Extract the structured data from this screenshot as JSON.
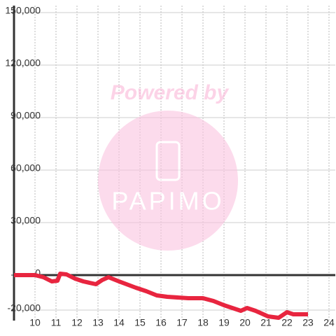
{
  "chart_data": {
    "type": "line",
    "watermark": {
      "line1": "Powered by",
      "line2": "PAPIMO"
    },
    "x": [
      9,
      10,
      10.4,
      10.8,
      11.07,
      11.2,
      11.5,
      11.9,
      12.3,
      12.9,
      13.2,
      13.5,
      14,
      14.8,
      15.3,
      15.8,
      16.3,
      17.3,
      18,
      18.5,
      19,
      19.8,
      20.1,
      20.5,
      21.1,
      21.6,
      22,
      22.3,
      23
    ],
    "series": [
      {
        "color": "#e8253f",
        "values": [
          0,
          0,
          -1200,
          -3600,
          -3200,
          800,
          400,
          -2000,
          -3600,
          -5200,
          -2800,
          -1200,
          -3600,
          -7200,
          -9200,
          -11600,
          -12400,
          -13200,
          -13200,
          -14800,
          -17200,
          -20400,
          -18800,
          -20400,
          -23600,
          -24400,
          -21200,
          -22400,
          -22400
        ]
      }
    ],
    "xlim": [
      9,
      24.3
    ],
    "xticks": [
      10,
      11,
      12,
      13,
      14,
      15,
      16,
      17,
      18,
      19,
      20,
      21,
      22,
      23,
      24
    ],
    "ylim": [
      -26000,
      154000
    ],
    "yticks": [
      {
        "value": -20000,
        "label": "-20,000"
      },
      0,
      {
        "value": 30000,
        "label": "30,000"
      },
      {
        "value": 60000,
        "label": "60,000"
      },
      {
        "value": 90000,
        "label": "90,000"
      },
      {
        "value": 120000,
        "label": "120,000"
      },
      {
        "value": 150000,
        "label": "150,000"
      }
    ],
    "grid": true
  }
}
